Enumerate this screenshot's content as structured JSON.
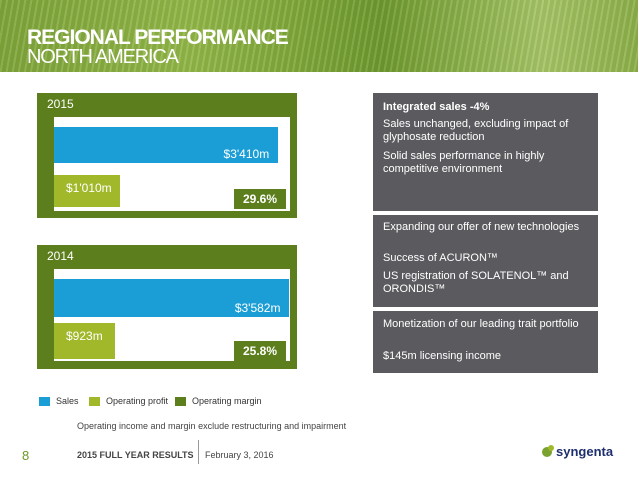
{
  "header": {
    "title_line1": "REGIONAL PERFORMANCE",
    "title_line2": "NORTH AMERICA"
  },
  "chart_data": [
    {
      "type": "bar",
      "year": "2015",
      "categories": [
        "Sales",
        "Operating profit"
      ],
      "values": [
        3410,
        1010
      ],
      "value_labels": [
        "$3'410m",
        "$1'010m"
      ],
      "operating_margin": "29.6%",
      "unit": "$m",
      "xlim": [
        0,
        3600
      ]
    },
    {
      "type": "bar",
      "year": "2014",
      "categories": [
        "Sales",
        "Operating profit"
      ],
      "values": [
        3582,
        923
      ],
      "value_labels": [
        "$3'582m",
        "$923m"
      ],
      "operating_margin": "25.8%",
      "unit": "$m",
      "xlim": [
        0,
        3600
      ]
    }
  ],
  "legend": {
    "items": [
      {
        "label": "Sales",
        "color": "#1a9ed5"
      },
      {
        "label": "Operating profit",
        "color": "#a1b82a"
      },
      {
        "label": "Operating margin",
        "color": "#5c7e1c"
      }
    ]
  },
  "note": "Operating income and margin exclude restructuring and impairment",
  "boxes": {
    "b1": {
      "heading": "Integrated sales -4%",
      "line1": "Sales unchanged, excluding impact of glyphosate reduction",
      "line2": "Solid sales performance in highly competitive environment"
    },
    "b2": {
      "line1": "Expanding our offer of new technologies",
      "line2": "Success of ACURON™",
      "line3": "US registration of SOLATENOL™ and ORONDIS™"
    },
    "b3": {
      "line1": "Monetization of our leading trait portfolio",
      "line2": "$145m licensing income"
    }
  },
  "footer": {
    "page": "8",
    "title": "2015 FULL YEAR RESULTS",
    "date": "February 3, 2016",
    "logo_text": "syngenta"
  },
  "colors": {
    "brand_green": "#5c7e1c",
    "sales_blue": "#1a9ed5",
    "profit_green": "#a1b82a",
    "box_gray": "#5b5b5f"
  }
}
